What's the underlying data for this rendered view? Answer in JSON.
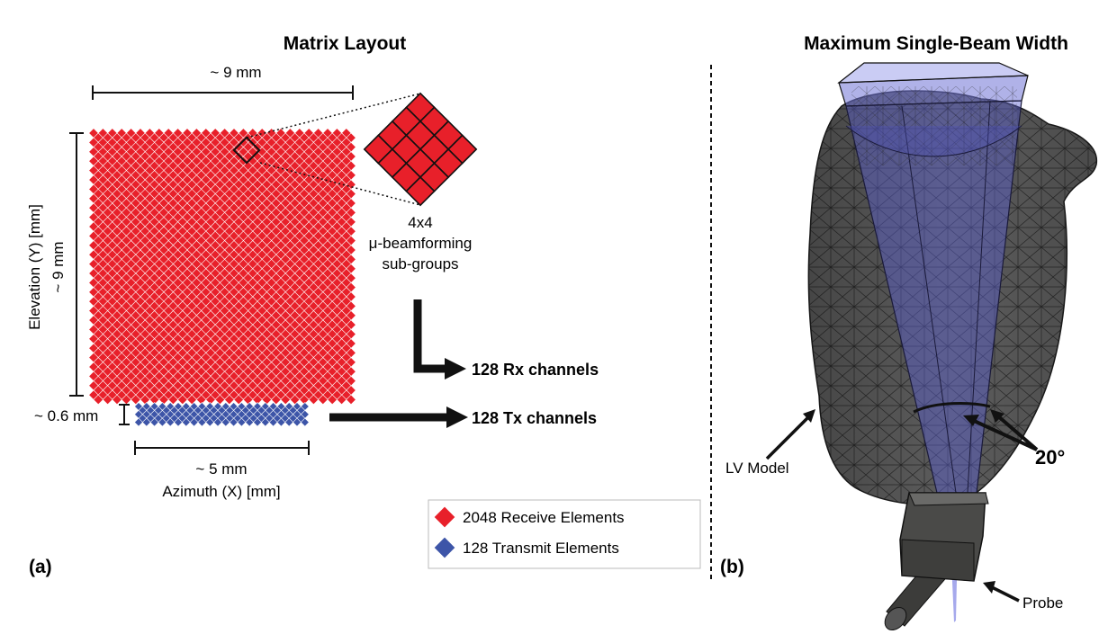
{
  "panel_a": {
    "title": "Matrix Layout",
    "label": "(a)",
    "width_top": "~ 9 mm",
    "height_side": "~ 9 mm",
    "elevation_axis": "Elevation (Y) [mm]",
    "tx_height": "~ 0.6 mm",
    "tx_width": "~ 5 mm",
    "azimuth_axis": "Azimuth (X) [mm]",
    "subgroup": {
      "line1": "4x4",
      "line2": "μ-beamforming",
      "line3": "sub-groups"
    },
    "rx_channels": "128 Rx channels",
    "tx_channels": "128 Tx channels",
    "legend": [
      {
        "label": "2048 Receive Elements",
        "color": "#e8202a"
      },
      {
        "label": "128 Transmit Elements",
        "color": "#3d55a8"
      }
    ]
  },
  "panel_b": {
    "title": "Maximum Single-Beam Width",
    "label": "(b)",
    "lv_model": "LV Model",
    "angle": "20°",
    "probe": "Probe"
  }
}
